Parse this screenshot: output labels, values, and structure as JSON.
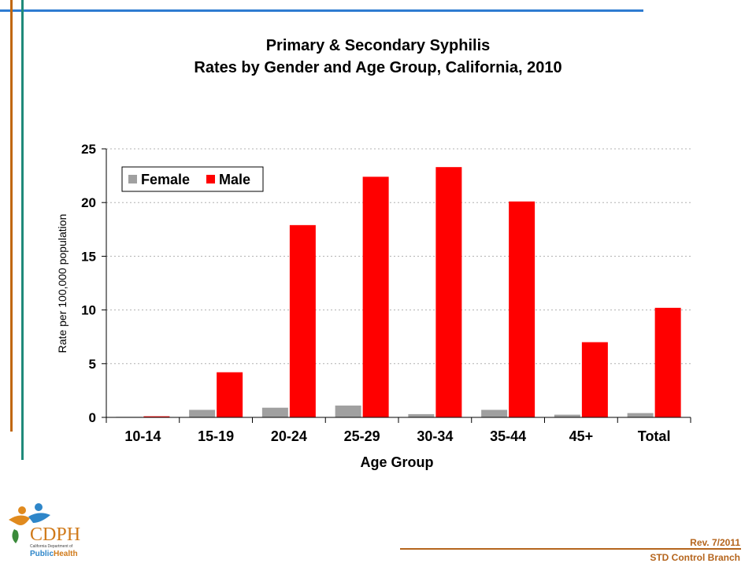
{
  "colors": {
    "female": "#a0a0a0",
    "male": "#ff0000",
    "top_line": "#2e7bd1",
    "footer": "#b5651d"
  },
  "chart_data": {
    "type": "bar",
    "title_line1": "Primary & Secondary Syphilis",
    "title_line2": "Rates by Gender and Age Group, California, 2010",
    "xlabel": "Age Group",
    "ylabel": "Rate per 100,000 population",
    "categories": [
      "10-14",
      "15-19",
      "20-24",
      "25-29",
      "30-34",
      "35-44",
      "45+",
      "Total"
    ],
    "series": [
      {
        "name": "Female",
        "values": [
          0.05,
          0.7,
          0.9,
          1.1,
          0.3,
          0.7,
          0.25,
          0.4
        ]
      },
      {
        "name": "Male",
        "values": [
          0.1,
          4.2,
          17.9,
          22.4,
          23.3,
          20.1,
          7.0,
          10.2
        ]
      }
    ],
    "ylim": [
      0,
      25
    ],
    "yticks": [
      "0",
      "5",
      "10",
      "15",
      "20",
      "25"
    ],
    "grid": true,
    "legend_position": "top-left"
  },
  "logo": {
    "abbr": "CDPH",
    "subtitle": "California Department of",
    "name_public": "Public",
    "name_health": "Health"
  },
  "footer": {
    "revision": "Rev. 7/2011",
    "branch": "STD Control Branch"
  }
}
